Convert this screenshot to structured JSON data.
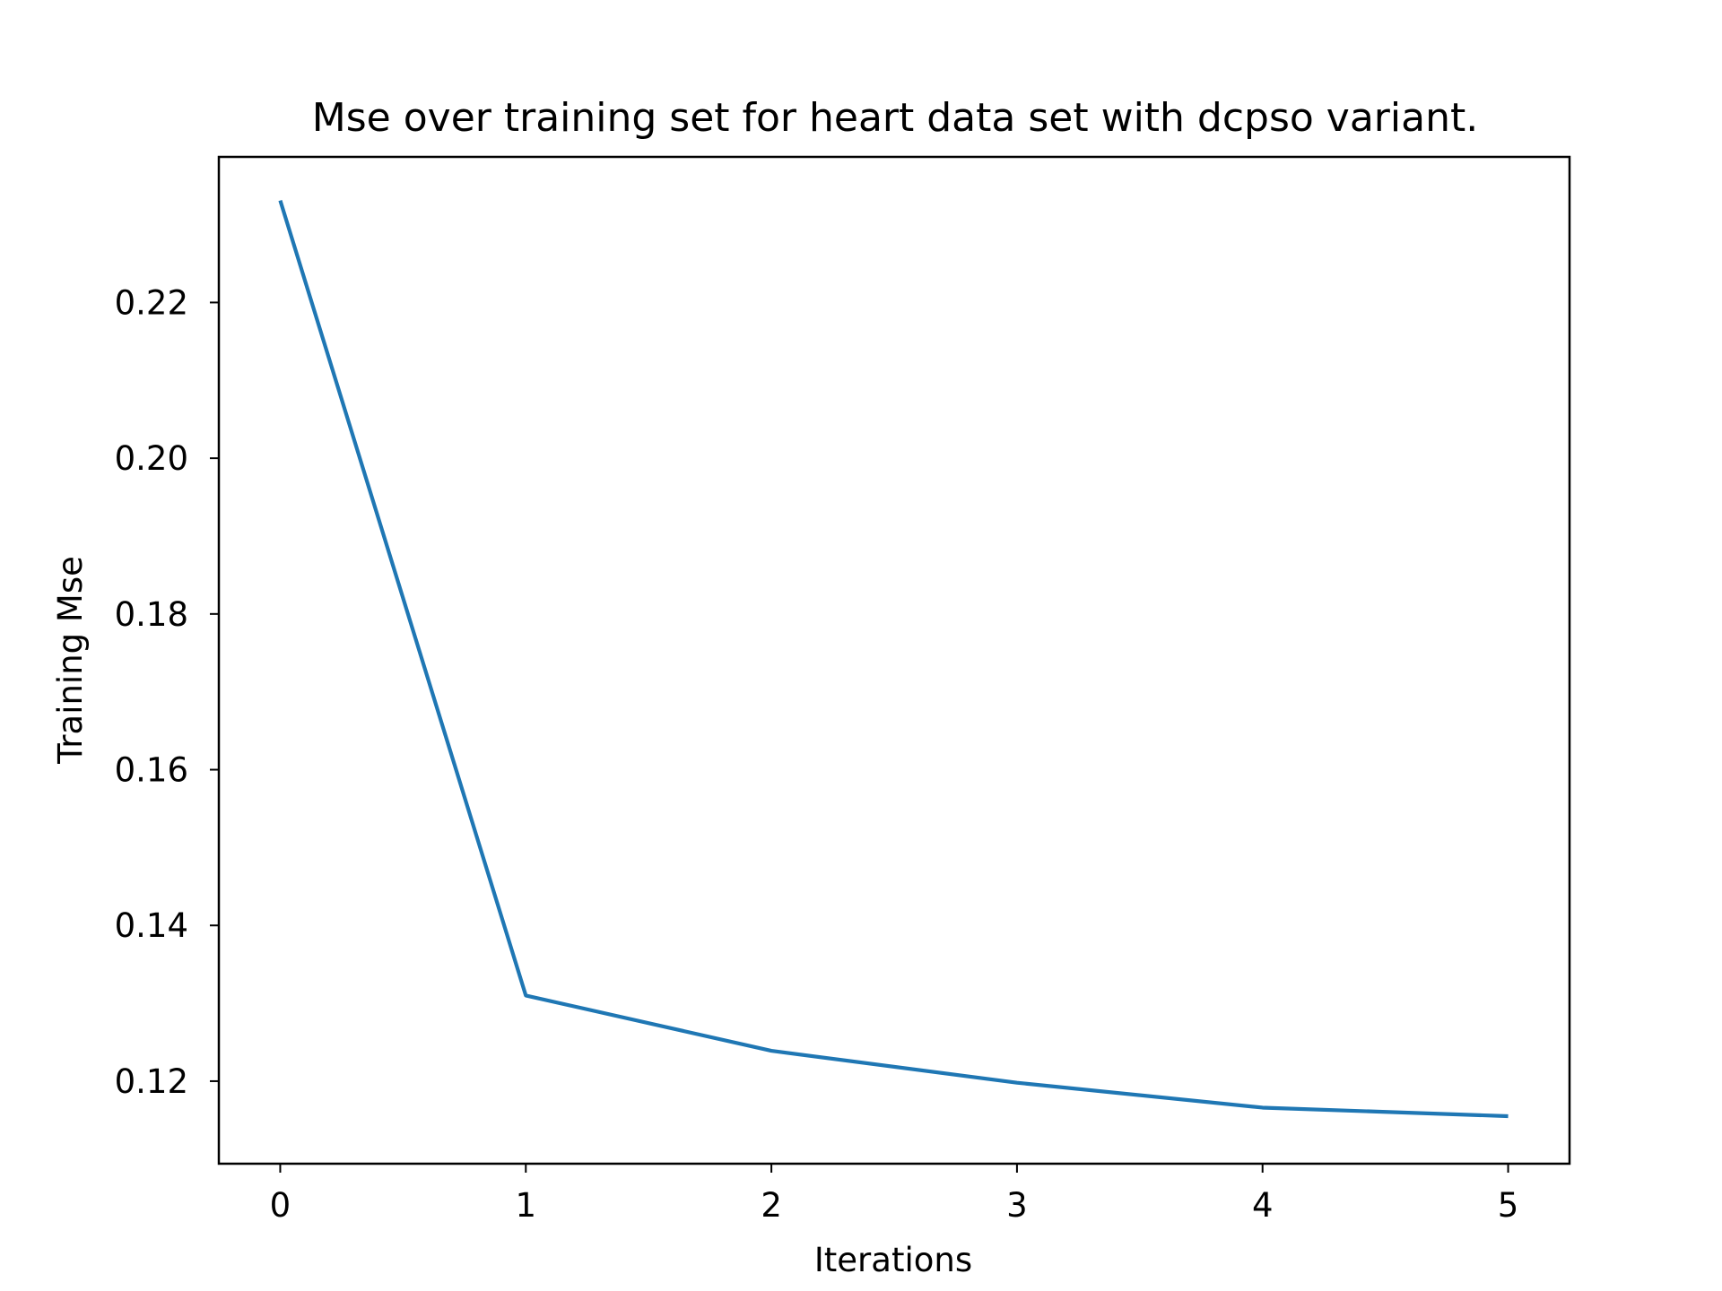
{
  "chart_data": {
    "type": "line",
    "title": "Mse over training set for heart data set with dcpso variant.",
    "xlabel": "Iterations",
    "ylabel": "Training Mse",
    "x": [
      0,
      1,
      2,
      3,
      4,
      5
    ],
    "series": [
      {
        "values": [
          0.2331,
          0.131,
          0.1239,
          0.1198,
          0.1166,
          0.1155
        ],
        "color": "#1f77b4"
      }
    ],
    "xlim": [
      -0.25,
      5.25
    ],
    "ylim": [
      0.1094,
      0.2387
    ],
    "xticks": [
      0,
      1,
      2,
      3,
      4,
      5
    ],
    "xtick_labels": [
      "0",
      "1",
      "2",
      "3",
      "4",
      "5"
    ],
    "yticks": [
      0.12,
      0.14,
      0.16,
      0.18,
      0.2,
      0.22
    ],
    "ytick_labels": [
      "0.12",
      "0.14",
      "0.16",
      "0.18",
      "0.20",
      "0.22"
    ],
    "grid": false,
    "legend": "none"
  }
}
